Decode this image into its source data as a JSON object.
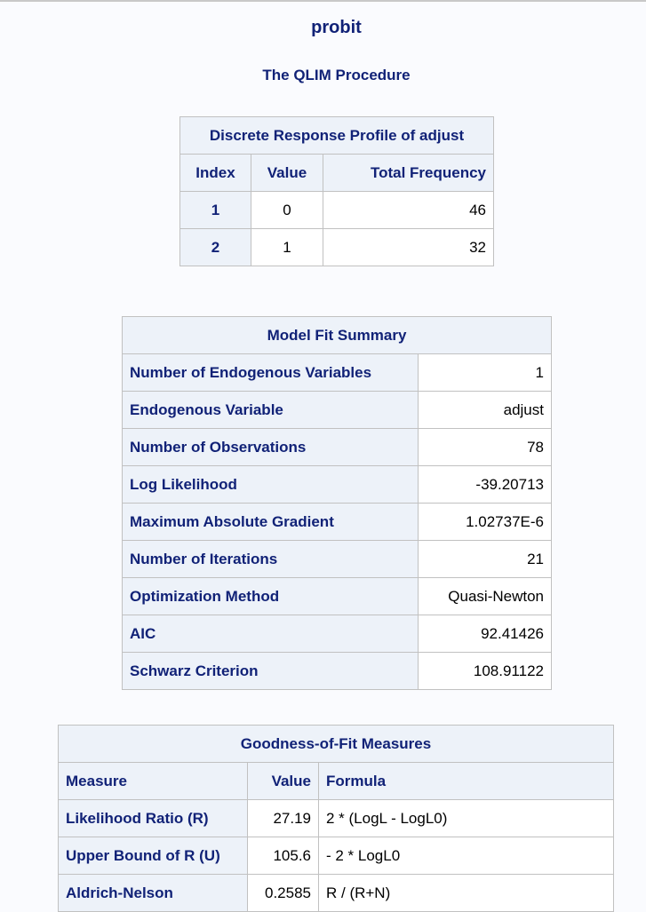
{
  "titles": {
    "main": "probit",
    "procedure": "The QLIM Procedure"
  },
  "response_profile": {
    "caption": "Discrete Response Profile of adjust",
    "headers": [
      "Index",
      "Value",
      "Total Frequency"
    ],
    "rows": [
      {
        "index": "1",
        "value": "0",
        "frequency": "46"
      },
      {
        "index": "2",
        "value": "1",
        "frequency": "32"
      }
    ]
  },
  "model_fit": {
    "caption": "Model Fit Summary",
    "rows": [
      {
        "label": "Number of Endogenous Variables",
        "value": "1"
      },
      {
        "label": "Endogenous Variable",
        "value": "adjust"
      },
      {
        "label": "Number of Observations",
        "value": "78"
      },
      {
        "label": "Log Likelihood",
        "value": "-39.20713"
      },
      {
        "label": "Maximum Absolute Gradient",
        "value": "1.02737E-6"
      },
      {
        "label": "Number of Iterations",
        "value": "21"
      },
      {
        "label": "Optimization Method",
        "value": "Quasi-Newton"
      },
      {
        "label": "AIC",
        "value": "92.41426"
      },
      {
        "label": "Schwarz Criterion",
        "value": "108.91122"
      }
    ]
  },
  "goodness_of_fit": {
    "caption": "Goodness-of-Fit Measures",
    "headers": [
      "Measure",
      "Value",
      "Formula"
    ],
    "rows": [
      {
        "measure": "Likelihood Ratio (R)",
        "value": "27.19",
        "formula": "2 * (LogL - LogL0)"
      },
      {
        "measure": "Upper Bound of R (U)",
        "value": "105.6",
        "formula": "- 2 * LogL0"
      },
      {
        "measure": "Aldrich-Nelson",
        "value": "0.2585",
        "formula": "R / (R+N)"
      }
    ]
  }
}
